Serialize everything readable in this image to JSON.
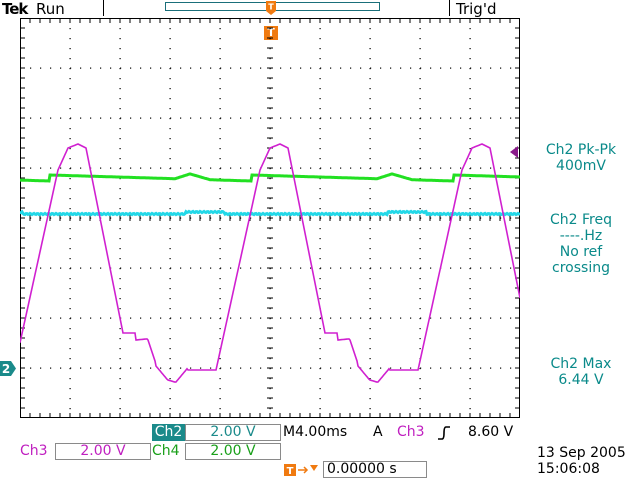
{
  "header": {
    "brand": "Tek",
    "run_state": "Run",
    "trigger_state": "Trig'd"
  },
  "markers": {
    "trigger_time_marker": "T",
    "ch2_ground_marker": "2"
  },
  "measurements": [
    {
      "name": "Ch2 Pk-Pk",
      "value": "400mV"
    },
    {
      "name": "Ch2 Freq",
      "value": "----.Hz",
      "note_1": "No ref",
      "note_2": "crossing"
    },
    {
      "name": "Ch2 Max",
      "value": "6.44 V"
    }
  ],
  "status": {
    "ch2_label": "Ch2",
    "ch2_scale": "2.00 V",
    "timebase": "M4.00ms",
    "trigger_mode": "A",
    "trigger_source": "Ch3",
    "trigger_level": "8.60 V",
    "ch3_label": "Ch3",
    "ch3_scale": "2.00 V",
    "ch4_label": "Ch4",
    "ch4_scale": "2.00 V",
    "trigger_position": "0.00000 s",
    "date": "13 Sep 2005",
    "time": "15:06:08"
  },
  "colors": {
    "ch2": "#1aa0a0",
    "ch3_trace": "#d020d0",
    "ch4_trace": "#22e022",
    "cyan_trace": "#22d8e8",
    "trigger": "#f07a10",
    "grid": "#000000"
  }
}
